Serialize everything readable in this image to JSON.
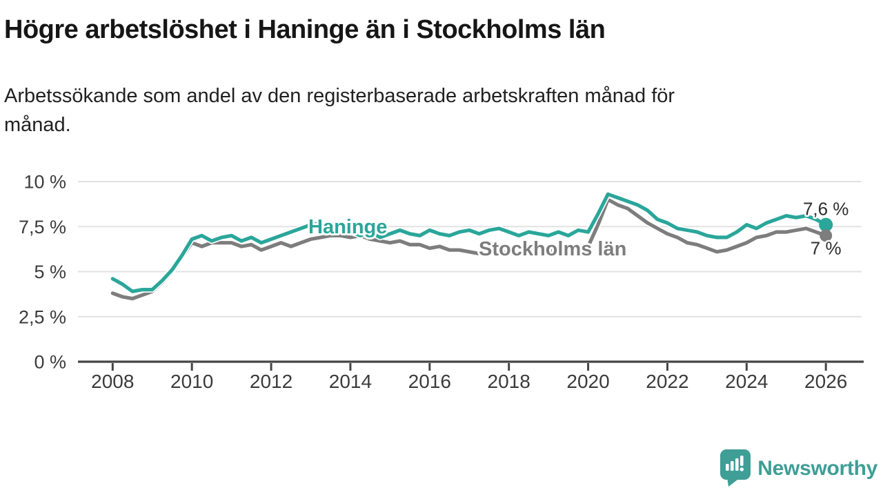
{
  "header": {
    "title": "Högre arbetslöshet i Haninge än i Stockholms län",
    "subtitle_lines": [
      "Arbetssökande som andel av den registerbaserade arbetskraften månad för",
      "månad."
    ]
  },
  "chart_data": {
    "type": "line",
    "unit": "percent",
    "x_start": 2008,
    "x_step_years": 0.25,
    "x_range": [
      2008,
      2026
    ],
    "y_range": [
      0,
      10
    ],
    "grid": true,
    "x_tick_labels": [
      "2008",
      "2010",
      "2012",
      "2014",
      "2016",
      "2018",
      "2020",
      "2022",
      "2024",
      "2026"
    ],
    "x_ticks": [
      2008,
      2010,
      2012,
      2014,
      2016,
      2018,
      2020,
      2022,
      2024,
      2026
    ],
    "y_tick_labels": [
      "0 %",
      "2,5 %",
      "5 %",
      "7,5 %",
      "10 %"
    ],
    "y_ticks": [
      0,
      2.5,
      5,
      7.5,
      10
    ],
    "colors": {
      "haninge": "#2aa69a",
      "stockholm": "#7d7d7d",
      "grid": "#e2e2e2",
      "axis": "#454545",
      "tick_text": "#3b3b3b",
      "value_text": "#2e2e2e"
    },
    "series": [
      {
        "name": "Haninge",
        "color": "#2aa69a",
        "end_label": "7,6 %",
        "values": [
          4.6,
          4.3,
          3.9,
          4.0,
          4.0,
          4.5,
          5.1,
          5.9,
          6.8,
          7.0,
          6.7,
          6.9,
          7.0,
          6.7,
          6.9,
          6.6,
          6.8,
          7.0,
          7.2,
          7.4,
          7.6,
          7.7,
          7.6,
          7.4,
          7.2,
          7.0,
          7.2,
          6.9,
          7.1,
          7.3,
          7.1,
          7.0,
          7.3,
          7.1,
          7.0,
          7.2,
          7.3,
          7.1,
          7.3,
          7.4,
          7.2,
          7.0,
          7.2,
          7.1,
          7.0,
          7.2,
          7.0,
          7.3,
          7.2,
          8.2,
          9.3,
          9.1,
          8.9,
          8.7,
          8.4,
          7.9,
          7.7,
          7.4,
          7.3,
          7.2,
          7.0,
          6.9,
          6.9,
          7.2,
          7.6,
          7.4,
          7.7,
          7.9,
          8.1,
          8.0,
          8.1,
          7.9,
          7.6
        ]
      },
      {
        "name": "Stockholms län",
        "color": "#7d7d7d",
        "end_label": "7 %",
        "values": [
          3.8,
          3.6,
          3.5,
          3.7,
          3.9,
          4.4,
          5.0,
          5.8,
          6.6,
          6.4,
          6.6,
          6.6,
          6.6,
          6.4,
          6.5,
          6.2,
          6.4,
          6.6,
          6.4,
          6.6,
          6.8,
          6.9,
          7.0,
          7.0,
          6.9,
          7.0,
          6.8,
          6.7,
          6.6,
          6.7,
          6.5,
          6.5,
          6.3,
          6.4,
          6.2,
          6.2,
          6.1,
          6.0,
          6.1,
          6.0,
          6.1,
          6.0,
          6.1,
          6.0,
          6.1,
          6.2,
          6.1,
          6.3,
          6.4,
          7.6,
          9.0,
          8.7,
          8.5,
          8.1,
          7.7,
          7.4,
          7.1,
          6.9,
          6.6,
          6.5,
          6.3,
          6.1,
          6.2,
          6.4,
          6.6,
          6.9,
          7.0,
          7.2,
          7.2,
          7.3,
          7.4,
          7.2,
          7.0
        ]
      }
    ]
  },
  "footer": {
    "brand": "Newsworthy",
    "brand_color": "#3f9e96",
    "logo_icon": "speech-bubble-bar-chart"
  }
}
